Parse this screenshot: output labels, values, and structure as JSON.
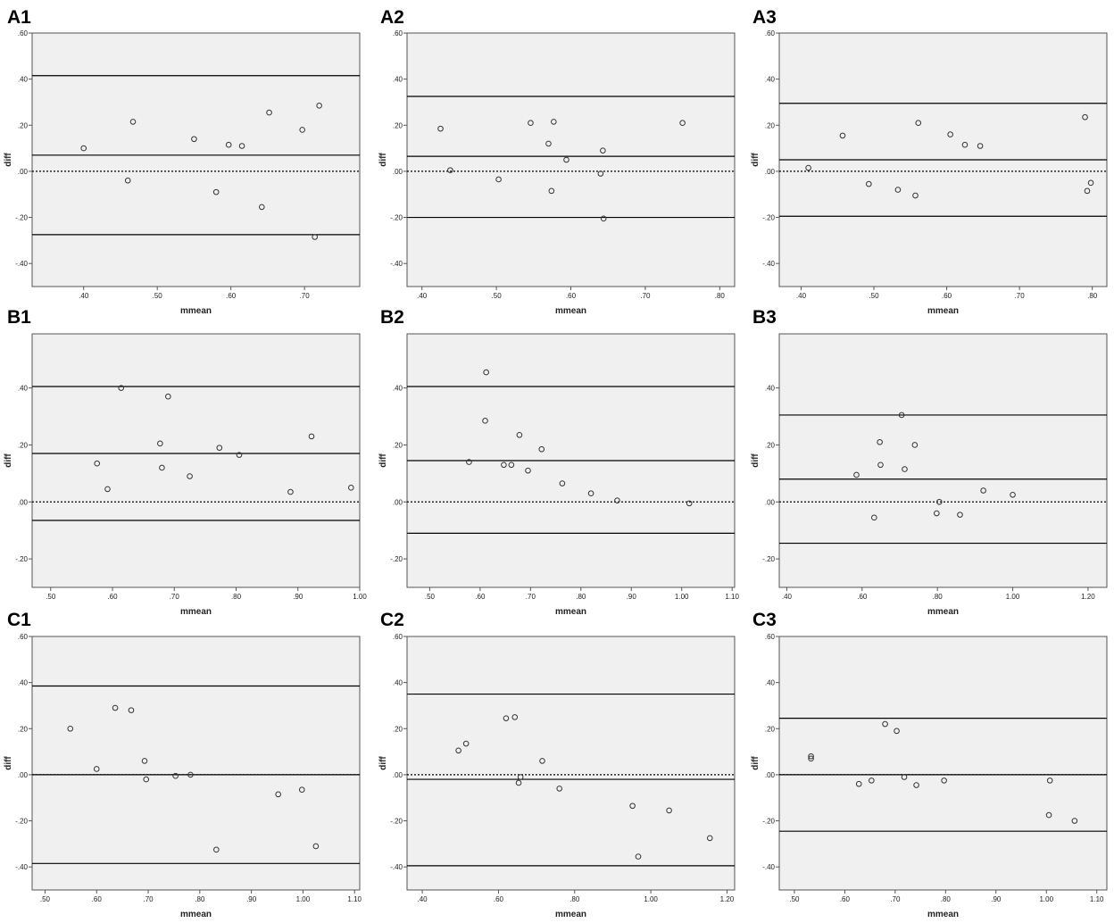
{
  "chart_data": [
    {
      "panel": "A1",
      "type": "scatter",
      "xlabel": "mmean",
      "ylabel": "diff",
      "xlim": [
        0.33,
        0.775
      ],
      "ylim": [
        -0.5,
        0.6
      ],
      "xticks": [
        ".40",
        ".50",
        ".60",
        ".70"
      ],
      "xtick_values": [
        0.4,
        0.5,
        0.6,
        0.7
      ],
      "yticks": [
        "-.40",
        "-.20",
        ".00",
        ".20",
        ".40",
        ".60"
      ],
      "ytick_values": [
        -0.4,
        -0.2,
        0.0,
        0.2,
        0.4,
        0.6
      ],
      "hlines": [
        0.415,
        0.07,
        -0.275
      ],
      "zero_line": 0.0,
      "points": [
        [
          0.4,
          0.1
        ],
        [
          0.46,
          -0.04
        ],
        [
          0.467,
          0.215
        ],
        [
          0.55,
          0.14
        ],
        [
          0.58,
          -0.09
        ],
        [
          0.597,
          0.115
        ],
        [
          0.615,
          0.11
        ],
        [
          0.642,
          -0.155
        ],
        [
          0.652,
          0.255
        ],
        [
          0.697,
          0.18
        ],
        [
          0.714,
          -0.285
        ],
        [
          0.72,
          0.285
        ]
      ]
    },
    {
      "panel": "A2",
      "type": "scatter",
      "xlabel": "mmean",
      "ylabel": "diff",
      "xlim": [
        0.38,
        0.82
      ],
      "ylim": [
        -0.5,
        0.6
      ],
      "xticks": [
        ".40",
        ".50",
        ".60",
        ".70",
        ".80"
      ],
      "xtick_values": [
        0.4,
        0.5,
        0.6,
        0.7,
        0.8
      ],
      "yticks": [
        "-.40",
        "-.20",
        ".00",
        ".20",
        ".40",
        ".60"
      ],
      "ytick_values": [
        -0.4,
        -0.2,
        0.0,
        0.2,
        0.4,
        0.6
      ],
      "hlines": [
        0.325,
        0.065,
        -0.2
      ],
      "zero_line": 0.0,
      "points": [
        [
          0.425,
          0.185
        ],
        [
          0.438,
          0.005
        ],
        [
          0.503,
          -0.035
        ],
        [
          0.546,
          0.21
        ],
        [
          0.57,
          0.12
        ],
        [
          0.574,
          -0.085
        ],
        [
          0.577,
          0.215
        ],
        [
          0.594,
          0.05
        ],
        [
          0.64,
          -0.01
        ],
        [
          0.643,
          0.09
        ],
        [
          0.644,
          -0.205
        ],
        [
          0.75,
          0.21
        ]
      ]
    },
    {
      "panel": "A3",
      "type": "scatter",
      "xlabel": "mmean",
      "ylabel": "diff",
      "xlim": [
        0.37,
        0.82
      ],
      "ylim": [
        -0.5,
        0.6
      ],
      "xticks": [
        ".40",
        ".50",
        ".60",
        ".70",
        ".80"
      ],
      "xtick_values": [
        0.4,
        0.5,
        0.6,
        0.7,
        0.8
      ],
      "yticks": [
        "-.40",
        "-.20",
        ".00",
        ".20",
        ".40",
        ".60"
      ],
      "ytick_values": [
        -0.4,
        -0.2,
        0.0,
        0.2,
        0.4,
        0.6
      ],
      "hlines": [
        0.295,
        0.05,
        -0.195
      ],
      "zero_line": 0.0,
      "points": [
        [
          0.41,
          0.015
        ],
        [
          0.457,
          0.155
        ],
        [
          0.493,
          -0.055
        ],
        [
          0.533,
          -0.08
        ],
        [
          0.557,
          -0.105
        ],
        [
          0.561,
          0.21
        ],
        [
          0.605,
          0.16
        ],
        [
          0.625,
          0.115
        ],
        [
          0.646,
          0.11
        ],
        [
          0.79,
          0.235
        ],
        [
          0.793,
          -0.085
        ],
        [
          0.798,
          -0.05
        ]
      ]
    },
    {
      "panel": "B1",
      "type": "scatter",
      "xlabel": "mmean",
      "ylabel": "diff",
      "xlim": [
        0.47,
        1.0
      ],
      "ylim": [
        -0.3,
        0.59
      ],
      "xticks": [
        ".50",
        ".60",
        ".70",
        ".80",
        ".90",
        "1.00"
      ],
      "xtick_values": [
        0.5,
        0.6,
        0.7,
        0.8,
        0.9,
        1.0
      ],
      "yticks": [
        "-.20",
        ".00",
        ".20",
        ".40"
      ],
      "ytick_values": [
        -0.2,
        0.0,
        0.2,
        0.4
      ],
      "hlines": [
        0.405,
        0.17,
        -0.065
      ],
      "zero_line": 0.0,
      "points": [
        [
          0.575,
          0.135
        ],
        [
          0.592,
          0.045
        ],
        [
          0.614,
          0.4
        ],
        [
          0.677,
          0.205
        ],
        [
          0.68,
          0.12
        ],
        [
          0.69,
          0.37
        ],
        [
          0.725,
          0.09
        ],
        [
          0.773,
          0.19
        ],
        [
          0.805,
          0.165
        ],
        [
          0.888,
          0.035
        ],
        [
          0.922,
          0.23
        ],
        [
          0.986,
          0.05
        ]
      ]
    },
    {
      "panel": "B2",
      "type": "scatter",
      "xlabel": "mmean",
      "ylabel": "diff",
      "xlim": [
        0.455,
        1.105
      ],
      "ylim": [
        -0.3,
        0.59
      ],
      "xticks": [
        ".50",
        ".60",
        ".70",
        ".80",
        ".90",
        "1.00",
        "1.10"
      ],
      "xtick_values": [
        0.5,
        0.6,
        0.7,
        0.8,
        0.9,
        1.0,
        1.1
      ],
      "yticks": [
        "-.20",
        ".00",
        ".20",
        ".40"
      ],
      "ytick_values": [
        -0.2,
        0.0,
        0.2,
        0.4
      ],
      "hlines": [
        0.405,
        0.145,
        -0.11
      ],
      "zero_line": 0.0,
      "points": [
        [
          0.578,
          0.14
        ],
        [
          0.61,
          0.285
        ],
        [
          0.612,
          0.455
        ],
        [
          0.647,
          0.13
        ],
        [
          0.662,
          0.13
        ],
        [
          0.678,
          0.235
        ],
        [
          0.695,
          0.11
        ],
        [
          0.722,
          0.185
        ],
        [
          0.763,
          0.065
        ],
        [
          0.82,
          0.03
        ],
        [
          0.872,
          0.005
        ],
        [
          1.015,
          -0.005
        ]
      ]
    },
    {
      "panel": "B3",
      "type": "scatter",
      "xlabel": "mmean",
      "ylabel": "diff",
      "xlim": [
        0.38,
        1.25
      ],
      "ylim": [
        -0.3,
        0.59
      ],
      "xticks": [
        ".40",
        ".60",
        ".80",
        "1.00",
        "1.20"
      ],
      "xtick_values": [
        0.4,
        0.6,
        0.8,
        1.0,
        1.2
      ],
      "yticks": [
        "-.20",
        ".00",
        ".20",
        ".40"
      ],
      "ytick_values": [
        -0.2,
        0.0,
        0.2,
        0.4
      ],
      "hlines": [
        0.305,
        0.08,
        -0.145
      ],
      "zero_line": 0.0,
      "points": [
        [
          0.585,
          0.095
        ],
        [
          0.632,
          -0.055
        ],
        [
          0.647,
          0.21
        ],
        [
          0.649,
          0.13
        ],
        [
          0.705,
          0.305
        ],
        [
          0.713,
          0.115
        ],
        [
          0.74,
          0.2
        ],
        [
          0.798,
          -0.04
        ],
        [
          0.805,
          0.0
        ],
        [
          0.86,
          -0.045
        ],
        [
          0.922,
          0.04
        ],
        [
          1.0,
          0.025
        ]
      ]
    },
    {
      "panel": "C1",
      "type": "scatter",
      "xlabel": "mmean",
      "ylabel": "diff",
      "xlim": [
        0.475,
        1.11
      ],
      "ylim": [
        -0.5,
        0.6
      ],
      "xticks": [
        ".50",
        ".60",
        ".70",
        ".80",
        ".90",
        "1.00",
        "1.10"
      ],
      "xtick_values": [
        0.5,
        0.6,
        0.7,
        0.8,
        0.9,
        1.0,
        1.1
      ],
      "yticks": [
        "-.40",
        "-.20",
        ".00",
        ".20",
        ".40",
        ".60"
      ],
      "ytick_values": [
        -0.4,
        -0.2,
        0.0,
        0.2,
        0.4,
        0.6
      ],
      "hlines": [
        0.385,
        0.0,
        -0.385
      ],
      "zero_line": 0.0,
      "points": [
        [
          0.549,
          0.2
        ],
        [
          0.6,
          0.025
        ],
        [
          0.636,
          0.29
        ],
        [
          0.667,
          0.28
        ],
        [
          0.693,
          0.06
        ],
        [
          0.696,
          -0.02
        ],
        [
          0.753,
          -0.005
        ],
        [
          0.782,
          0.0
        ],
        [
          0.832,
          -0.325
        ],
        [
          0.952,
          -0.085
        ],
        [
          0.998,
          -0.065
        ],
        [
          1.025,
          -0.31
        ]
      ]
    },
    {
      "panel": "C2",
      "type": "scatter",
      "xlabel": "mmean",
      "ylabel": "diff",
      "xlim": [
        0.36,
        1.22
      ],
      "ylim": [
        -0.5,
        0.6
      ],
      "xticks": [
        ".40",
        ".60",
        ".80",
        "1.00",
        "1.20"
      ],
      "xtick_values": [
        0.4,
        0.6,
        0.8,
        1.0,
        1.2
      ],
      "yticks": [
        "-.40",
        "-.20",
        ".00",
        ".20",
        ".40",
        ".60"
      ],
      "ytick_values": [
        -0.4,
        -0.2,
        0.0,
        0.2,
        0.4,
        0.6
      ],
      "hlines": [
        0.35,
        -0.02,
        -0.395
      ],
      "zero_line": 0.0,
      "points": [
        [
          0.495,
          0.105
        ],
        [
          0.515,
          0.135
        ],
        [
          0.62,
          0.245
        ],
        [
          0.643,
          0.25
        ],
        [
          0.653,
          -0.035
        ],
        [
          0.658,
          -0.01
        ],
        [
          0.715,
          0.06
        ],
        [
          0.76,
          -0.06
        ],
        [
          0.952,
          -0.135
        ],
        [
          0.967,
          -0.355
        ],
        [
          1.048,
          -0.155
        ],
        [
          1.155,
          -0.275
        ]
      ]
    },
    {
      "panel": "C3",
      "type": "scatter",
      "xlabel": "mmean",
      "ylabel": "diff",
      "xlim": [
        0.47,
        1.12
      ],
      "ylim": [
        -0.5,
        0.6
      ],
      "xticks": [
        ".50",
        ".60",
        ".70",
        ".80",
        ".90",
        "1.00",
        "1.10"
      ],
      "xtick_values": [
        0.5,
        0.6,
        0.7,
        0.8,
        0.9,
        1.0,
        1.1
      ],
      "yticks": [
        "-.40",
        "-.20",
        ".00",
        ".20",
        ".40",
        ".60"
      ],
      "ytick_values": [
        -0.4,
        -0.2,
        0.0,
        0.2,
        0.4,
        0.6
      ],
      "hlines": [
        0.245,
        0.0,
        -0.245
      ],
      "zero_line": 0.0,
      "points": [
        [
          0.533,
          0.08
        ],
        [
          0.533,
          0.07
        ],
        [
          0.628,
          -0.04
        ],
        [
          0.653,
          -0.025
        ],
        [
          0.68,
          0.22
        ],
        [
          0.703,
          0.19
        ],
        [
          0.718,
          -0.01
        ],
        [
          0.742,
          -0.045
        ],
        [
          0.797,
          -0.025
        ],
        [
          1.007,
          -0.025
        ],
        [
          1.005,
          -0.175
        ],
        [
          1.056,
          -0.2
        ]
      ]
    }
  ],
  "colors": {
    "plot_bg": "#f0f0f0",
    "frame": "#555555",
    "line": "#000000",
    "marker": "#333333"
  }
}
